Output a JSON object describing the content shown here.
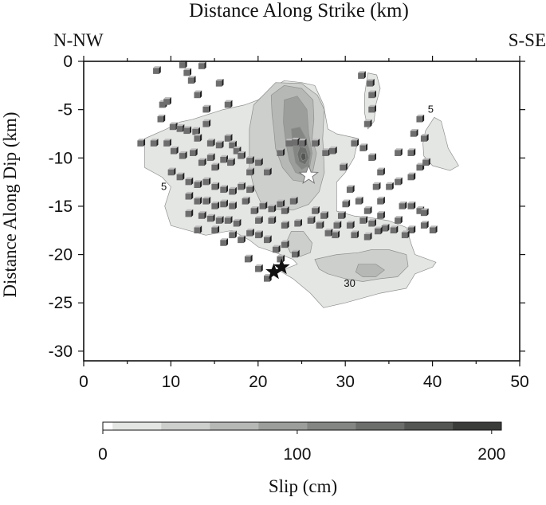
{
  "chart_data": {
    "type": "heatmap",
    "title": "Distance Along Strike (km)",
    "xlabel": "",
    "ylabel": "Distance Along Dip (km)",
    "xlim": [
      0,
      50
    ],
    "ylim": [
      -31,
      0
    ],
    "x_ticks": [
      0,
      10,
      20,
      30,
      40,
      50
    ],
    "y_ticks": [
      0,
      -5,
      -10,
      -15,
      -20,
      -25,
      -30
    ],
    "corner_labels": {
      "left": "N-NW",
      "right": "S-SE"
    },
    "contour_labels": [
      {
        "text": "5",
        "x": 39.8,
        "y": -5
      },
      {
        "text": "5",
        "x": 9.2,
        "y": -13
      },
      {
        "text": "30",
        "x": 30.5,
        "y": -23
      }
    ],
    "contours": [
      {
        "level": 5,
        "color": "#e4e6e4",
        "polygons": [
          [
            [
              7,
              -8
            ],
            [
              7,
              -10
            ],
            [
              7,
              -11
            ],
            [
              9,
              -12
            ],
            [
              10,
              -13
            ],
            [
              9.3,
              -15
            ],
            [
              10,
              -17
            ],
            [
              12,
              -17.5
            ],
            [
              14,
              -18
            ],
            [
              17,
              -17.5
            ],
            [
              19,
              -18.5
            ],
            [
              20,
              -19.2
            ],
            [
              22,
              -19.8
            ],
            [
              24,
              -20.5
            ],
            [
              24.5,
              -21
            ],
            [
              22.5,
              -21.7
            ],
            [
              24,
              -22.5
            ],
            [
              26,
              -24
            ],
            [
              27.5,
              -25.5
            ],
            [
              30,
              -25
            ],
            [
              34,
              -24
            ],
            [
              37,
              -23.5
            ],
            [
              38,
              -22
            ],
            [
              40,
              -21.3
            ],
            [
              40.4,
              -20.8
            ],
            [
              38,
              -20
            ],
            [
              37.6,
              -19
            ],
            [
              37,
              -17.2
            ],
            [
              35,
              -16.5
            ],
            [
              33,
              -16.2
            ],
            [
              31,
              -16
            ],
            [
              29,
              -15.5
            ],
            [
              29,
              -12.5
            ],
            [
              30,
              -11.5
            ],
            [
              31,
              -10
            ],
            [
              31.5,
              -8
            ],
            [
              29,
              -7.5
            ],
            [
              28,
              -7
            ],
            [
              27.5,
              -4.5
            ],
            [
              26.5,
              -2.5
            ],
            [
              25,
              -2.2
            ],
            [
              23,
              -2
            ],
            [
              21.5,
              -2.8
            ],
            [
              20,
              -4
            ],
            [
              18.5,
              -4.5
            ],
            [
              16,
              -5
            ],
            [
              12.5,
              -6
            ],
            [
              11,
              -6.3
            ],
            [
              9.5,
              -7
            ]
          ],
          [
            [
              32.6,
              -1.2
            ],
            [
              33.6,
              -1.4
            ],
            [
              34,
              -2.8
            ],
            [
              33.5,
              -4.5
            ],
            [
              33.3,
              -6.2
            ],
            [
              32.6,
              -7
            ],
            [
              32.2,
              -5.3
            ],
            [
              32.2,
              -3.5
            ]
          ],
          [
            [
              39.2,
              -7.2
            ],
            [
              40.2,
              -5.8
            ],
            [
              41,
              -6.2
            ],
            [
              41.8,
              -9
            ],
            [
              43,
              -10.8
            ],
            [
              42,
              -11.3
            ],
            [
              40,
              -10.8
            ],
            [
              39,
              -9.8
            ],
            [
              38.9,
              -8.5
            ]
          ]
        ]
      },
      {
        "level": 30,
        "color": "#cdcfcd",
        "polygons": [
          [
            [
              19.5,
              -4.5
            ],
            [
              22,
              -2.2
            ],
            [
              25,
              -2.3
            ],
            [
              26.8,
              -3.5
            ],
            [
              27.6,
              -5
            ],
            [
              27.4,
              -8
            ],
            [
              27.5,
              -9.5
            ],
            [
              27.6,
              -11.5
            ],
            [
              27,
              -13.5
            ],
            [
              25.8,
              -14.8
            ],
            [
              24,
              -15.4
            ],
            [
              22,
              -15.3
            ],
            [
              20.5,
              -15
            ],
            [
              19.5,
              -13
            ],
            [
              19,
              -11
            ],
            [
              19,
              -7
            ]
          ],
          [
            [
              23.8,
              -17.6
            ],
            [
              25.2,
              -17.6
            ],
            [
              26.2,
              -18.8
            ],
            [
              26,
              -19.8
            ],
            [
              24.8,
              -20.2
            ],
            [
              23.7,
              -19.8
            ],
            [
              23.2,
              -18.8
            ]
          ],
          [
            [
              26.5,
              -20.5
            ],
            [
              29,
              -20
            ],
            [
              31.5,
              -19.8
            ],
            [
              33,
              -19.5
            ],
            [
              35,
              -19.5
            ],
            [
              37,
              -20
            ],
            [
              37.2,
              -21.2
            ],
            [
              36,
              -22.3
            ],
            [
              34,
              -22.5
            ],
            [
              32,
              -22.8
            ],
            [
              30,
              -22.5
            ],
            [
              28,
              -22
            ],
            [
              27,
              -21.5
            ]
          ]
        ]
      },
      {
        "level": 55,
        "color": "#b6b8b6",
        "polygons": [
          [
            [
              21.5,
              -3.5
            ],
            [
              23,
              -2.5
            ],
            [
              25,
              -2.8
            ],
            [
              26.3,
              -4
            ],
            [
              26.4,
              -6
            ],
            [
              26.2,
              -8
            ],
            [
              26.7,
              -9.5
            ],
            [
              26.3,
              -11.3
            ],
            [
              25.4,
              -12.5
            ],
            [
              24,
              -12.3
            ],
            [
              22.8,
              -11
            ],
            [
              22,
              -9
            ],
            [
              21.8,
              -7
            ],
            [
              21.6,
              -5.5
            ]
          ],
          [
            [
              31.5,
              -21
            ],
            [
              33.5,
              -21
            ],
            [
              34.5,
              -21.6
            ],
            [
              33.5,
              -22.3
            ],
            [
              32,
              -22.3
            ],
            [
              31.2,
              -21.8
            ]
          ]
        ]
      },
      {
        "level": 80,
        "color": "#9c9e9c",
        "polygons": [
          [
            [
              23,
              -4
            ],
            [
              24.5,
              -3.6
            ],
            [
              25.6,
              -5
            ],
            [
              25.8,
              -7.5
            ],
            [
              26.2,
              -9.5
            ],
            [
              25.9,
              -11
            ],
            [
              25.2,
              -11.8
            ],
            [
              24.3,
              -11.5
            ],
            [
              23.6,
              -10.3
            ],
            [
              23.2,
              -8.5
            ],
            [
              22.9,
              -6.3
            ]
          ]
        ]
      },
      {
        "level": 105,
        "color": "#848684",
        "polygons": [
          [
            [
              23.8,
              -7
            ],
            [
              24.8,
              -6.8
            ],
            [
              25.5,
              -8
            ],
            [
              26,
              -9.5
            ],
            [
              25.8,
              -10.8
            ],
            [
              25,
              -11.2
            ],
            [
              24.3,
              -10.5
            ],
            [
              24,
              -9
            ]
          ]
        ]
      },
      {
        "level": 130,
        "color": "#6c6e6c",
        "polygons": [
          [
            [
              24.8,
              -8.8
            ],
            [
              25.5,
              -9
            ],
            [
              25.8,
              -10
            ],
            [
              25.4,
              -10.7
            ],
            [
              24.7,
              -10.4
            ],
            [
              24.5,
              -9.6
            ]
          ]
        ]
      },
      {
        "level": 155,
        "color": "#545654",
        "polygons": [
          [
            [
              25,
              -9.5
            ],
            [
              25.4,
              -9.5
            ],
            [
              25.5,
              -10.1
            ],
            [
              25.1,
              -10.3
            ],
            [
              24.9,
              -9.9
            ]
          ]
        ]
      }
    ],
    "aftershocks": [
      [
        8.3,
        -1
      ],
      [
        11.3,
        -0.4
      ],
      [
        11.8,
        -1.2
      ],
      [
        13.5,
        -0.5
      ],
      [
        12.3,
        -2
      ],
      [
        9,
        -4.5
      ],
      [
        9.5,
        -4.2
      ],
      [
        13,
        -3.5
      ],
      [
        15.5,
        -2.3
      ],
      [
        14,
        -5
      ],
      [
        16.5,
        -4.5
      ],
      [
        8.8,
        -6
      ],
      [
        10.2,
        -6.8
      ],
      [
        11,
        -7
      ],
      [
        11.8,
        -7.2
      ],
      [
        12.8,
        -7.3
      ],
      [
        14,
        -6.5
      ],
      [
        13,
        -8
      ],
      [
        14.5,
        -8.5
      ],
      [
        15.5,
        -8.7
      ],
      [
        16.5,
        -8
      ],
      [
        17,
        -8.7
      ],
      [
        17.5,
        -9.3
      ],
      [
        6.5,
        -8.5
      ],
      [
        8,
        -8.5
      ],
      [
        9.5,
        -8.5
      ],
      [
        10.3,
        -9.3
      ],
      [
        11.3,
        -9.8
      ],
      [
        12.5,
        -9.5
      ],
      [
        13.5,
        -10.5
      ],
      [
        14.5,
        -10
      ],
      [
        15,
        -11
      ],
      [
        16,
        -10.2
      ],
      [
        16.8,
        -10.5
      ],
      [
        18,
        -9.8
      ],
      [
        19,
        -10.3
      ],
      [
        20,
        -10.5
      ],
      [
        21,
        -11.5
      ],
      [
        19,
        -11.5
      ],
      [
        10,
        -11.5
      ],
      [
        11,
        -12
      ],
      [
        12,
        -12.5
      ],
      [
        13,
        -12.8
      ],
      [
        14,
        -12.5
      ],
      [
        15,
        -13
      ],
      [
        16,
        -13.3
      ],
      [
        17,
        -13.5
      ],
      [
        18,
        -13
      ],
      [
        19,
        -13.3
      ],
      [
        12,
        -14
      ],
      [
        13,
        -14.5
      ],
      [
        14,
        -14.5
      ],
      [
        15,
        -15
      ],
      [
        16,
        -14.8
      ],
      [
        17,
        -15
      ],
      [
        18.5,
        -14.5
      ],
      [
        19.5,
        -15.5
      ],
      [
        20.5,
        -15
      ],
      [
        21.5,
        -15.3
      ],
      [
        22.5,
        -14.8
      ],
      [
        23,
        -15.5
      ],
      [
        12,
        -15.8
      ],
      [
        13.5,
        -16
      ],
      [
        14.5,
        -16.3
      ],
      [
        15.5,
        -16.5
      ],
      [
        16.5,
        -16.5
      ],
      [
        17.5,
        -16.8
      ],
      [
        20,
        -16.5
      ],
      [
        21.5,
        -16.5
      ],
      [
        23,
        -17
      ],
      [
        24.5,
        -16.8
      ],
      [
        13,
        -17.5
      ],
      [
        15,
        -17.5
      ],
      [
        17,
        -18
      ],
      [
        16,
        -18.8
      ],
      [
        18,
        -18.5
      ],
      [
        19,
        -17.8
      ],
      [
        20,
        -18
      ],
      [
        21,
        -18.5
      ],
      [
        22,
        -19.5
      ],
      [
        23,
        -19
      ],
      [
        26.5,
        -15.5
      ],
      [
        27.5,
        -16
      ],
      [
        26,
        -16.5
      ],
      [
        27,
        -17
      ],
      [
        24,
        -14.5
      ],
      [
        22.5,
        -9.5
      ],
      [
        23.5,
        -8.5
      ],
      [
        24.2,
        -8.4
      ],
      [
        25,
        -8.5
      ],
      [
        26.5,
        -8.5
      ],
      [
        27.7,
        -9.5
      ],
      [
        28.5,
        -9.3
      ],
      [
        29.7,
        -11
      ],
      [
        31,
        -8.5
      ],
      [
        32,
        -9
      ],
      [
        33,
        -10
      ],
      [
        34,
        -11.5
      ],
      [
        33.5,
        -13
      ],
      [
        34,
        -14.5
      ],
      [
        35,
        -13
      ],
      [
        36,
        -12.5
      ],
      [
        37.5,
        -12
      ],
      [
        38.5,
        -11
      ],
      [
        36,
        -9.5
      ],
      [
        37.5,
        -9.5
      ],
      [
        39,
        -8
      ],
      [
        37.8,
        -7.5
      ],
      [
        38.5,
        -6
      ],
      [
        39.2,
        -10.5
      ],
      [
        32.5,
        -6.5
      ],
      [
        33,
        -5
      ],
      [
        33,
        -3.5
      ],
      [
        32.8,
        -2.3
      ],
      [
        31.8,
        -1.5
      ],
      [
        30.5,
        -13.3
      ],
      [
        30,
        -14.8
      ],
      [
        29.5,
        -16
      ],
      [
        29,
        -17
      ],
      [
        30.5,
        -17
      ],
      [
        32,
        -16.5
      ],
      [
        33,
        -16.8
      ],
      [
        34,
        -16
      ],
      [
        34.5,
        -17.3
      ],
      [
        35.5,
        -17.5
      ],
      [
        36.5,
        -15
      ],
      [
        37.5,
        -15
      ],
      [
        38.5,
        -15.5
      ],
      [
        36,
        -16.5
      ],
      [
        37.5,
        -17.5
      ],
      [
        39,
        -17
      ],
      [
        39,
        -15.7
      ],
      [
        40,
        -17.5
      ],
      [
        31.5,
        -14.5
      ],
      [
        32.5,
        -15.5
      ],
      [
        28,
        -17.8
      ],
      [
        28.8,
        -18
      ],
      [
        31,
        -18
      ],
      [
        32.5,
        -18.2
      ],
      [
        33.7,
        -17.6
      ],
      [
        36.8,
        -18
      ],
      [
        22.5,
        -20.5
      ],
      [
        24.2,
        -20
      ],
      [
        20,
        -21.5
      ],
      [
        21,
        -22.5
      ],
      [
        18.8,
        -20.5
      ]
    ],
    "hypocenter_white": {
      "x": 25.8,
      "y": -11.8
    },
    "epicenters_black": [
      {
        "x": 21.8,
        "y": -21.8
      },
      {
        "x": 22.7,
        "y": -21.3
      }
    ],
    "colorbar": {
      "label": "Slip (cm)",
      "min": 0,
      "max": 205,
      "tick_values": [
        0,
        100,
        200
      ],
      "tick_labels": [
        "0",
        "100",
        "200"
      ],
      "bins": [
        {
          "from": 0,
          "to": 5,
          "color": "#ffffff"
        },
        {
          "from": 5,
          "to": 30,
          "color": "#e4e6e4"
        },
        {
          "from": 30,
          "to": 55,
          "color": "#cdcfcd"
        },
        {
          "from": 55,
          "to": 80,
          "color": "#b6b8b6"
        },
        {
          "from": 80,
          "to": 105,
          "color": "#9c9e9c"
        },
        {
          "from": 105,
          "to": 130,
          "color": "#848684"
        },
        {
          "from": 130,
          "to": 155,
          "color": "#6c6e6c"
        },
        {
          "from": 155,
          "to": 180,
          "color": "#545654"
        },
        {
          "from": 180,
          "to": 205,
          "color": "#3a3c3a"
        }
      ]
    }
  }
}
